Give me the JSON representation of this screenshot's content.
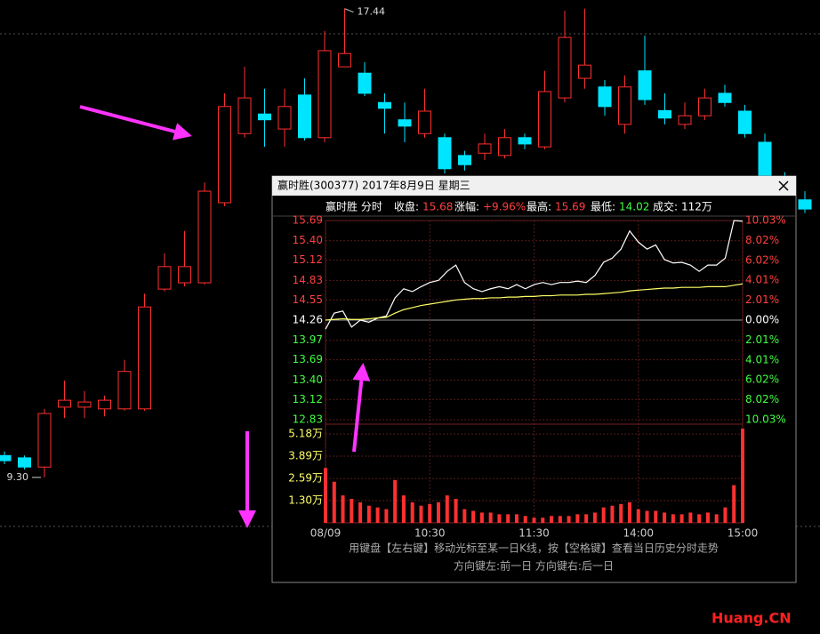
{
  "chart_data": [
    {
      "type": "candlestick",
      "ylim": [
        8.48,
        17.59
      ],
      "colors": {
        "up": "#ff3030",
        "down": "#00e5ff"
      },
      "candles": [
        [
          9.68,
          9.75,
          9.53,
          9.59
        ],
        [
          9.64,
          9.68,
          9.44,
          9.48
        ],
        [
          9.48,
          10.49,
          9.3,
          10.41
        ],
        [
          10.52,
          10.98,
          10.33,
          10.64
        ],
        [
          10.52,
          10.8,
          10.33,
          10.61
        ],
        [
          10.49,
          10.72,
          10.36,
          10.64
        ],
        [
          10.49,
          11.34,
          10.46,
          11.14
        ],
        [
          10.49,
          12.49,
          10.46,
          12.26
        ],
        [
          12.57,
          13.19,
          12.53,
          12.96
        ],
        [
          12.68,
          13.58,
          12.62,
          12.96
        ],
        [
          12.68,
          14.42,
          12.65,
          14.27
        ],
        [
          14.07,
          15.97,
          14.01,
          15.74
        ],
        [
          15.27,
          16.43,
          15.2,
          15.89
        ],
        [
          15.61,
          16.05,
          15.04,
          15.51
        ],
        [
          15.35,
          16.05,
          15.04,
          15.74
        ],
        [
          15.94,
          16.23,
          15.15,
          15.2
        ],
        [
          15.2,
          17.05,
          15.12,
          16.71
        ],
        [
          16.43,
          17.44,
          16.43,
          16.66
        ],
        [
          16.32,
          16.51,
          15.92,
          15.97
        ],
        [
          15.81,
          15.97,
          15.27,
          15.71
        ],
        [
          15.51,
          15.81,
          15.12,
          15.4
        ],
        [
          15.27,
          16.05,
          15.2,
          15.66
        ],
        [
          15.2,
          15.27,
          14.58,
          14.66
        ],
        [
          14.89,
          14.97,
          14.63,
          14.73
        ],
        [
          14.93,
          15.27,
          14.81,
          15.09
        ],
        [
          14.89,
          15.35,
          14.84,
          15.2
        ],
        [
          15.2,
          15.27,
          15.0,
          15.09
        ],
        [
          15.04,
          16.36,
          15.0,
          16.0
        ],
        [
          15.89,
          17.4,
          15.81,
          16.94
        ],
        [
          16.23,
          17.44,
          16.05,
          16.46
        ],
        [
          16.08,
          16.2,
          15.58,
          15.74
        ],
        [
          15.43,
          16.28,
          15.27,
          16.08
        ],
        [
          16.36,
          16.97,
          15.77,
          15.86
        ],
        [
          15.67,
          15.97,
          15.43,
          15.54
        ],
        [
          15.43,
          15.81,
          15.35,
          15.58
        ],
        [
          15.58,
          16.05,
          15.51,
          15.89
        ],
        [
          15.97,
          16.12,
          15.74,
          15.81
        ],
        [
          15.66,
          15.77,
          15.2,
          15.27
        ],
        [
          15.12,
          15.27,
          14.42,
          14.5
        ],
        [
          14.5,
          14.6,
          14.1,
          14.2
        ],
        [
          14.12,
          14.27,
          13.89,
          13.96
        ]
      ],
      "annotations": [
        {
          "value": 17.44,
          "label": "17.44"
        },
        {
          "value": 9.3,
          "label": "9.30"
        }
      ]
    },
    {
      "type": "line",
      "title": "赢时胜(300377) 2017年8月9日 星期三",
      "subtitle": "赢时胜 分时",
      "info": [
        {
          "label": "收盘:",
          "value": 15.68,
          "color": "#ff4040"
        },
        {
          "label": "涨幅:",
          "value": 9.96,
          "value_label": "+9.96%",
          "color": "#ff4040"
        },
        {
          "label": "最高:",
          "value": 15.69,
          "color": "#ff4040"
        },
        {
          "label": "最低:",
          "value": 14.02,
          "color": "#40ff40"
        },
        {
          "label": "成交:",
          "value": 112,
          "value_label": "112万",
          "color": "#ffffff"
        }
      ],
      "x": [
        0,
        5,
        10,
        15,
        20,
        25,
        30,
        35,
        40,
        45,
        50,
        55,
        60,
        65,
        70,
        75,
        80,
        85,
        90,
        95,
        100,
        105,
        110,
        115,
        120,
        125,
        130,
        135,
        140,
        145,
        150,
        155,
        160,
        165,
        170,
        175,
        180,
        185,
        190,
        195,
        200,
        205,
        210,
        215,
        220,
        225,
        230,
        235,
        240
      ],
      "xlim": [
        0,
        240
      ],
      "xticks": [
        {
          "value": 0,
          "label": "08/09"
        },
        {
          "value": 60,
          "label": "10:30"
        },
        {
          "value": 120,
          "label": "11:30"
        },
        {
          "value": 180,
          "label": "14:00"
        },
        {
          "value": 240,
          "label": "15:00"
        }
      ],
      "ylim": [
        12.83,
        15.69
      ],
      "yticks": [
        15.69,
        {
          "value": 15.4,
          "label": "15.40"
        },
        15.12,
        14.83,
        14.55,
        14.26,
        13.97,
        13.69,
        {
          "value": 13.4,
          "label": "13.40"
        },
        13.12,
        12.83
      ],
      "y2lim": [
        -10.03,
        10.03
      ],
      "y2ticks": [
        {
          "value": 10.03,
          "label": "10.03%"
        },
        {
          "value": 8.02,
          "label": "8.02%"
        },
        {
          "value": 6.02,
          "label": "6.02%"
        },
        {
          "value": 4.01,
          "label": "4.01%"
        },
        {
          "value": 2.01,
          "label": "2.01%"
        },
        {
          "value": 0,
          "label": "0.00%"
        },
        {
          "value": -2.01,
          "label": "2.01%"
        },
        {
          "value": -4.01,
          "label": "4.01%"
        },
        {
          "value": -6.02,
          "label": "6.02%"
        },
        {
          "value": -8.02,
          "label": "8.02%"
        },
        {
          "value": -10.03,
          "label": "10.03%"
        }
      ],
      "series": [
        {
          "color": "#ffffff",
          "values": [
            14.13,
            14.36,
            14.39,
            14.16,
            14.26,
            14.23,
            14.29,
            14.32,
            14.58,
            14.71,
            14.67,
            14.74,
            14.8,
            14.83,
            14.96,
            15.05,
            14.8,
            14.71,
            14.67,
            14.71,
            14.74,
            14.71,
            14.77,
            14.71,
            14.77,
            14.8,
            14.77,
            14.8,
            14.8,
            14.82,
            14.8,
            14.9,
            15.09,
            15.15,
            15.28,
            15.54,
            15.38,
            15.28,
            15.34,
            15.13,
            15.08,
            15.09,
            15.05,
            14.96,
            15.05,
            15.05,
            15.15,
            15.69,
            15.68
          ]
        },
        {
          "color": "#ffff66",
          "values": [
            14.26,
            14.27,
            14.28,
            14.27,
            14.27,
            14.28,
            14.29,
            14.3,
            14.36,
            14.41,
            14.44,
            14.47,
            14.49,
            14.51,
            14.53,
            14.55,
            14.56,
            14.57,
            14.57,
            14.58,
            14.58,
            14.59,
            14.59,
            14.6,
            14.6,
            14.61,
            14.61,
            14.62,
            14.62,
            14.62,
            14.63,
            14.63,
            14.64,
            14.65,
            14.66,
            14.68,
            14.69,
            14.7,
            14.71,
            14.72,
            14.72,
            14.73,
            14.73,
            14.73,
            14.74,
            14.74,
            14.74,
            14.76,
            14.78
          ]
        }
      ],
      "volume": {
        "color": "#ff3030",
        "ylim": [
          0,
          5.5
        ],
        "yticks": [
          {
            "value": 5.18,
            "label": "5.18万"
          },
          {
            "value": 3.89,
            "label": "3.89万"
          },
          {
            "value": 2.59,
            "label": "2.59万"
          },
          {
            "value": 1.3,
            "label": "1.30万"
          }
        ],
        "values": [
          3.2,
          2.4,
          1.6,
          1.4,
          1.2,
          1.0,
          0.9,
          0.8,
          2.5,
          1.6,
          1.2,
          1.0,
          1.1,
          1.2,
          1.6,
          1.4,
          0.8,
          0.7,
          0.6,
          0.6,
          0.5,
          0.5,
          0.5,
          0.4,
          0.3,
          0.3,
          0.4,
          0.4,
          0.4,
          0.5,
          0.5,
          0.6,
          0.9,
          1.0,
          1.1,
          1.2,
          0.8,
          0.7,
          0.7,
          0.6,
          0.5,
          0.5,
          0.6,
          0.5,
          0.6,
          0.5,
          0.9,
          2.2,
          5.5
        ]
      },
      "notes": [
        "用键盘【左右键】移动光标至某一日K线，按【空格键】查看当日历史分时走势",
        "方向键左:前一日  方向键右:后一日"
      ]
    }
  ],
  "watermark": "Huang.CN"
}
